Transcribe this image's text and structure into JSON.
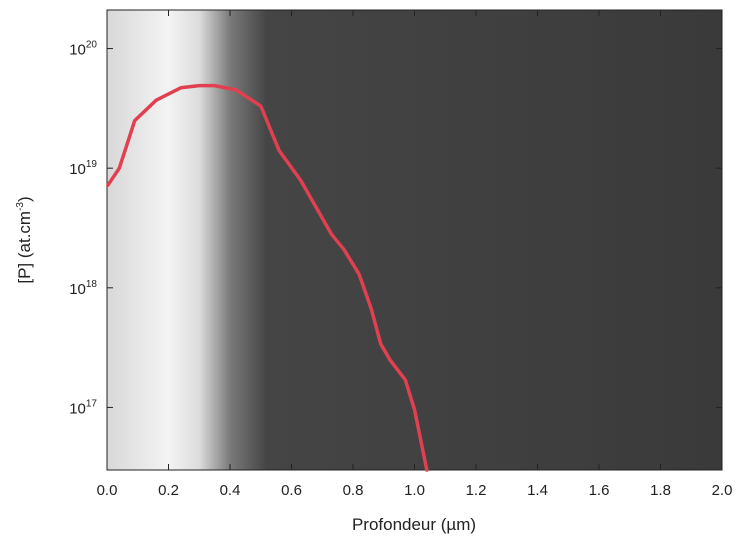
{
  "chart_data": {
    "type": "line",
    "x_label": "Profondeur (µm)",
    "y_label": {
      "text": "[P] (at.cm",
      "sup": "-3",
      "end": ")"
    },
    "log_y": true,
    "xlim": [
      0,
      2
    ],
    "ylim": [
      3e+16,
      2.1e+20
    ],
    "xticks": [
      {
        "value": 0,
        "label": "0.0"
      },
      0.2,
      0.4,
      0.6,
      0.8,
      {
        "value": 1,
        "label": "1.0"
      },
      1.2,
      1.4,
      1.6,
      1.8,
      {
        "value": 2,
        "label": "2.0"
      }
    ],
    "yticks": [
      {
        "value": 1e+17,
        "label": "10",
        "sup": "17"
      },
      {
        "value": 1e+18,
        "label": "10",
        "sup": "18"
      },
      {
        "value": 1e+19,
        "label": "10",
        "sup": "19"
      },
      {
        "value": 1e+20,
        "label": "10",
        "sup": "20"
      }
    ],
    "series": [
      {
        "color": "#e0404f",
        "x": [
          0.003,
          0.04,
          0.09,
          0.16,
          0.24,
          0.3,
          0.35,
          0.42,
          0.5,
          0.56,
          0.63,
          0.73,
          0.77,
          0.82,
          0.86,
          0.89,
          0.92,
          0.97,
          1.0,
          1.02,
          1.04
        ],
        "values": [
          7.2e+18,
          1e+19,
          2.5e+19,
          3.7e+19,
          4.7e+19,
          4.9e+19,
          4.9e+19,
          4.5e+19,
          3.3e+19,
          1.4e+19,
          7.9e+18,
          2.8e+18,
          2.1e+18,
          1.3e+18,
          6.6e+17,
          3.4e+17,
          2.5e+17,
          1.7e+17,
          9.6e+16,
          5.4e+16,
          3e+16
        ]
      }
    ]
  }
}
